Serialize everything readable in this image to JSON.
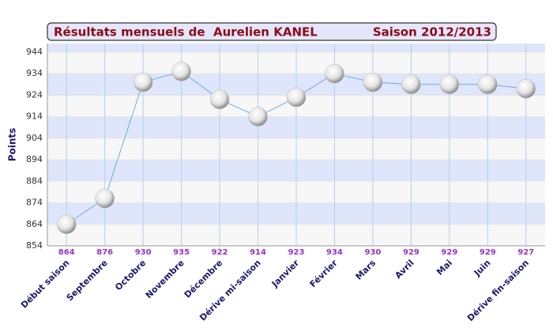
{
  "chart_data": {
    "type": "line",
    "title": "Résultats mensuels de  Aurelien KANEL",
    "subtitle": "Saison 2012/2013",
    "y_label": "Points",
    "categories": [
      "Début saison",
      "Septembre",
      "Octobre",
      "Novembre",
      "Décembre",
      "Dérive mi-saison",
      "Janvier",
      "Février",
      "Mars",
      "Avril",
      "Mai",
      "Juin",
      "Dérive fin-saison"
    ],
    "values": [
      864,
      876,
      930,
      935,
      922,
      914,
      923,
      934,
      930,
      929,
      929,
      929,
      927
    ],
    "color": "#6aaee0",
    "ylim": [
      854,
      948
    ],
    "yticks": [
      854,
      864,
      874,
      884,
      894,
      904,
      914,
      924,
      934,
      944
    ],
    "grid": true
  }
}
